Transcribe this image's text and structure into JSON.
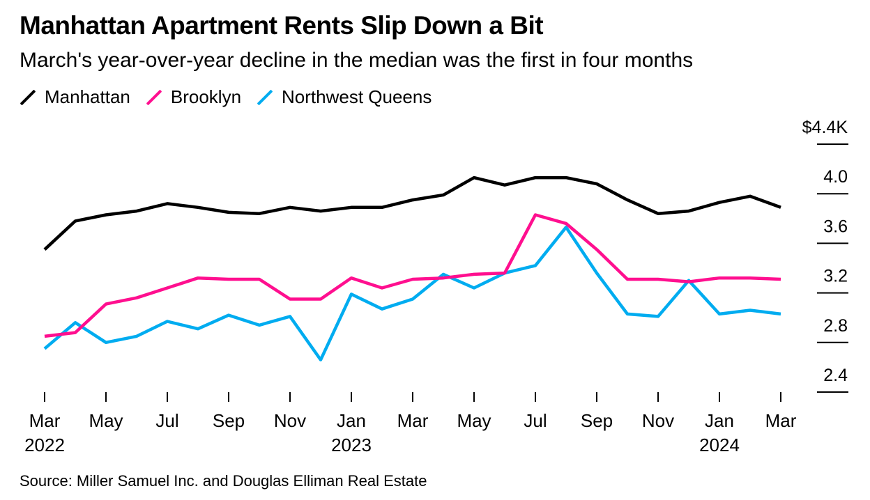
{
  "chart_data": {
    "type": "line",
    "title": "Manhattan Apartment Rents Slip Down a Bit",
    "subtitle": "March's year-over-year decline in the median was the first in four months",
    "source": "Source: Miller Samuel Inc. and Douglas Elliman Real Estate",
    "x": [
      "2022-03",
      "2022-04",
      "2022-05",
      "2022-06",
      "2022-07",
      "2022-08",
      "2022-09",
      "2022-10",
      "2022-11",
      "2022-12",
      "2023-01",
      "2023-02",
      "2023-03",
      "2023-04",
      "2023-05",
      "2023-06",
      "2023-07",
      "2023-08",
      "2023-09",
      "2023-10",
      "2023-11",
      "2023-12",
      "2024-01",
      "2024-02",
      "2024-03"
    ],
    "x_tick_labels": [
      {
        "x": "2022-03",
        "month": "Mar",
        "year": "2022"
      },
      {
        "x": "2022-05",
        "month": "May",
        "year": ""
      },
      {
        "x": "2022-07",
        "month": "Jul",
        "year": ""
      },
      {
        "x": "2022-09",
        "month": "Sep",
        "year": ""
      },
      {
        "x": "2022-11",
        "month": "Nov",
        "year": ""
      },
      {
        "x": "2023-01",
        "month": "Jan",
        "year": "2023"
      },
      {
        "x": "2023-03",
        "month": "Mar",
        "year": ""
      },
      {
        "x": "2023-05",
        "month": "May",
        "year": ""
      },
      {
        "x": "2023-07",
        "month": "Jul",
        "year": ""
      },
      {
        "x": "2023-09",
        "month": "Sep",
        "year": ""
      },
      {
        "x": "2023-11",
        "month": "Nov",
        "year": ""
      },
      {
        "x": "2024-01",
        "month": "Jan",
        "year": "2024"
      },
      {
        "x": "2024-03",
        "month": "Mar",
        "year": ""
      }
    ],
    "y_ticks": [
      {
        "value": 2.4,
        "label": "2.4"
      },
      {
        "value": 2.8,
        "label": "2.8"
      },
      {
        "value": 3.2,
        "label": "3.2"
      },
      {
        "value": 3.6,
        "label": "3.6"
      },
      {
        "value": 4.0,
        "label": "4.0"
      },
      {
        "value": 4.4,
        "label": "$4.4K"
      }
    ],
    "ylim": [
      2.4,
      4.4
    ],
    "y_unit": "$K",
    "grid": false,
    "legend_position": "top-left",
    "series": [
      {
        "name": "Manhattan",
        "color": "#000000",
        "values": [
          3.55,
          3.78,
          3.83,
          3.86,
          3.92,
          3.89,
          3.85,
          3.84,
          3.89,
          3.86,
          3.89,
          3.89,
          3.95,
          3.99,
          4.13,
          4.07,
          4.13,
          4.13,
          4.08,
          3.95,
          3.84,
          3.86,
          3.93,
          3.98,
          3.89
        ]
      },
      {
        "name": "Brooklyn",
        "color": "#ff0f8f",
        "values": [
          2.85,
          2.88,
          3.11,
          3.16,
          3.24,
          3.32,
          3.31,
          3.31,
          3.15,
          3.15,
          3.32,
          3.24,
          3.31,
          3.32,
          3.35,
          3.36,
          3.83,
          3.76,
          3.55,
          3.31,
          3.31,
          3.29,
          3.32,
          3.32,
          3.31
        ]
      },
      {
        "name": "Northwest Queens",
        "color": "#00acf0",
        "values": [
          2.75,
          2.96,
          2.8,
          2.85,
          2.97,
          2.91,
          3.02,
          2.94,
          3.01,
          2.66,
          3.19,
          3.07,
          3.15,
          3.35,
          3.24,
          3.36,
          3.42,
          3.73,
          3.36,
          3.03,
          3.01,
          3.3,
          3.03,
          3.06,
          3.03
        ]
      }
    ]
  }
}
